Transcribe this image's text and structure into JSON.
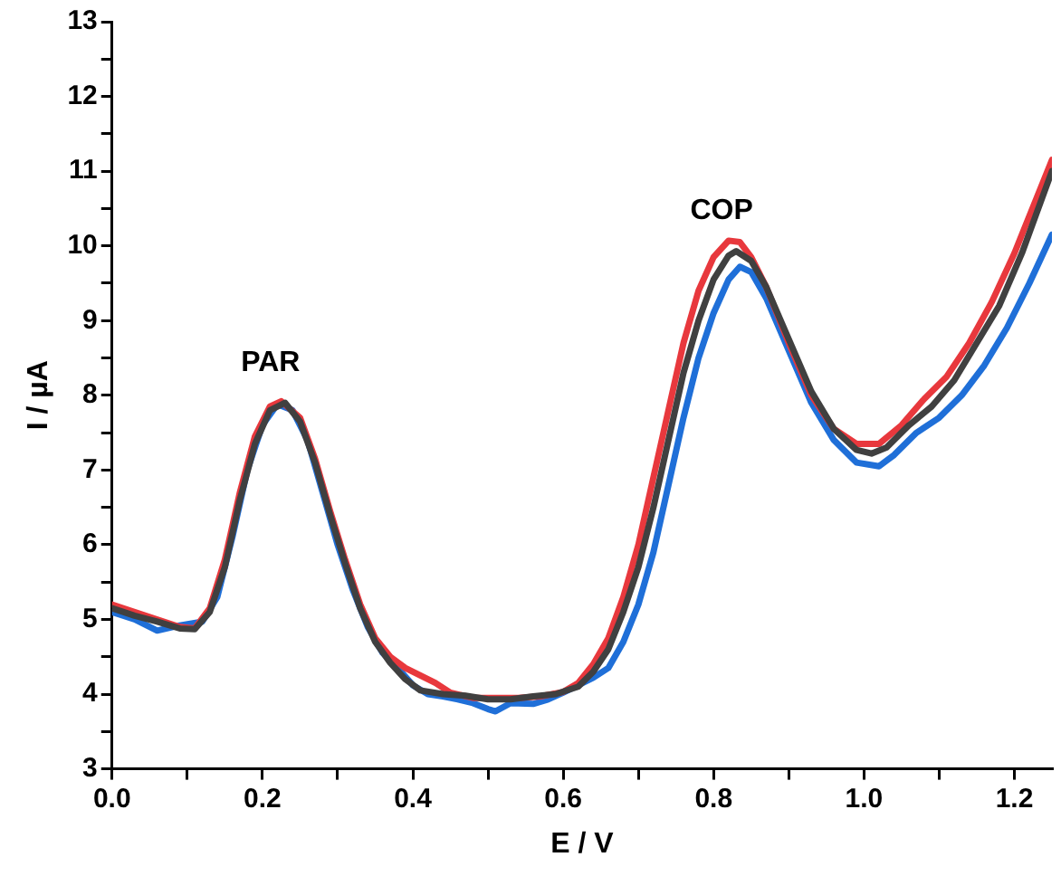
{
  "chart_data": {
    "type": "line",
    "xlabel": "E / V",
    "ylabel": "I / µA",
    "xlim": [
      0,
      1.25
    ],
    "ylim": [
      3,
      13
    ],
    "xticks": [
      {
        "value": 0,
        "label": "0.0"
      },
      {
        "value": 0.1,
        "label": null
      },
      {
        "value": 0.2,
        "label": "0.2"
      },
      {
        "value": 0.3,
        "label": null
      },
      {
        "value": 0.4,
        "label": "0.4"
      },
      {
        "value": 0.5,
        "label": null
      },
      {
        "value": 0.6,
        "label": "0.6"
      },
      {
        "value": 0.7,
        "label": null
      },
      {
        "value": 0.8,
        "label": "0.8"
      },
      {
        "value": 0.9,
        "label": null
      },
      {
        "value": 1,
        "label": "1.0"
      },
      {
        "value": 1.1,
        "label": null
      },
      {
        "value": 1.2,
        "label": "1.2"
      }
    ],
    "yticks": [
      3,
      {
        "value": 3.5,
        "label": null
      },
      4,
      {
        "value": 4.5,
        "label": null
      },
      5,
      {
        "value": 5.5,
        "label": null
      },
      6,
      {
        "value": 6.5,
        "label": null
      },
      7,
      {
        "value": 7.5,
        "label": null
      },
      8,
      {
        "value": 8.5,
        "label": null
      },
      9,
      {
        "value": 9.5,
        "label": null
      },
      10,
      {
        "value": 10.5,
        "label": null
      },
      11,
      {
        "value": 11.5,
        "label": null
      },
      12,
      {
        "value": 12.5,
        "label": null
      },
      13
    ],
    "grid": false,
    "legend": false,
    "marker": "none",
    "line_style": "solid",
    "annotations": [
      "PAR",
      "COP"
    ],
    "series": [
      {
        "color": "#404040",
        "x": [
          0,
          0.03,
          0.06,
          0.09,
          0.11,
          0.13,
          0.15,
          0.17,
          0.19,
          0.21,
          0.23,
          0.25,
          0.27,
          0.29,
          0.31,
          0.33,
          0.35,
          0.37,
          0.39,
          0.41,
          0.44,
          0.47,
          0.5,
          0.53,
          0.56,
          0.59,
          0.62,
          0.64,
          0.66,
          0.68,
          0.7,
          0.72,
          0.74,
          0.76,
          0.78,
          0.8,
          0.82,
          0.83,
          0.85,
          0.87,
          0.9,
          0.93,
          0.96,
          0.99,
          1.01,
          1.03,
          1.06,
          1.09,
          1.12,
          1.15,
          1.18,
          1.21,
          1.25
        ],
        "values": [
          5.15,
          5.05,
          4.97,
          4.88,
          4.87,
          5.1,
          5.7,
          6.6,
          7.35,
          7.8,
          7.9,
          7.65,
          7.1,
          6.4,
          5.75,
          5.15,
          4.7,
          4.42,
          4.2,
          4.05,
          4.0,
          3.98,
          3.93,
          3.93,
          3.97,
          4.0,
          4.1,
          4.3,
          4.6,
          5.1,
          5.7,
          6.5,
          7.4,
          8.3,
          9.0,
          9.55,
          9.87,
          9.93,
          9.8,
          9.45,
          8.75,
          8.05,
          7.55,
          7.27,
          7.22,
          7.3,
          7.6,
          7.85,
          8.2,
          8.7,
          9.2,
          9.9,
          11.0
        ]
      },
      {
        "color": "#e8383d",
        "x": [
          0,
          0.03,
          0.06,
          0.09,
          0.11,
          0.13,
          0.15,
          0.17,
          0.19,
          0.21,
          0.225,
          0.25,
          0.27,
          0.29,
          0.31,
          0.33,
          0.35,
          0.37,
          0.39,
          0.41,
          0.43,
          0.45,
          0.48,
          0.51,
          0.54,
          0.57,
          0.6,
          0.62,
          0.64,
          0.66,
          0.68,
          0.7,
          0.72,
          0.74,
          0.76,
          0.78,
          0.8,
          0.82,
          0.835,
          0.85,
          0.87,
          0.9,
          0.93,
          0.96,
          0.99,
          1.02,
          1.05,
          1.08,
          1.11,
          1.14,
          1.17,
          1.2,
          1.25
        ],
        "values": [
          5.2,
          5.1,
          5.0,
          4.9,
          4.88,
          5.15,
          5.8,
          6.7,
          7.45,
          7.85,
          7.92,
          7.7,
          7.15,
          6.45,
          5.8,
          5.2,
          4.75,
          4.5,
          4.35,
          4.25,
          4.15,
          4.02,
          3.95,
          3.95,
          3.95,
          3.97,
          4.03,
          4.15,
          4.4,
          4.75,
          5.3,
          6.0,
          6.9,
          7.8,
          8.7,
          9.4,
          9.85,
          10.07,
          10.05,
          9.85,
          9.45,
          8.7,
          8.0,
          7.55,
          7.35,
          7.35,
          7.6,
          7.95,
          8.25,
          8.7,
          9.25,
          9.9,
          11.15
        ]
      },
      {
        "color": "#1f6fd8",
        "x": [
          0,
          0.03,
          0.06,
          0.09,
          0.12,
          0.14,
          0.16,
          0.18,
          0.2,
          0.22,
          0.24,
          0.26,
          0.28,
          0.3,
          0.32,
          0.34,
          0.36,
          0.38,
          0.4,
          0.42,
          0.44,
          0.46,
          0.48,
          0.5,
          0.51,
          0.53,
          0.56,
          0.58,
          0.6,
          0.62,
          0.64,
          0.66,
          0.68,
          0.7,
          0.72,
          0.74,
          0.76,
          0.78,
          0.8,
          0.82,
          0.835,
          0.85,
          0.87,
          0.9,
          0.93,
          0.96,
          0.99,
          1.02,
          1.04,
          1.07,
          1.1,
          1.13,
          1.16,
          1.19,
          1.22,
          1.25
        ],
        "values": [
          5.1,
          5.0,
          4.85,
          4.92,
          4.97,
          5.3,
          6.1,
          7.0,
          7.6,
          7.88,
          7.8,
          7.4,
          6.7,
          6.0,
          5.4,
          4.9,
          4.55,
          4.35,
          4.12,
          4.0,
          3.97,
          3.93,
          3.88,
          3.8,
          3.77,
          3.88,
          3.87,
          3.93,
          4.02,
          4.12,
          4.22,
          4.35,
          4.7,
          5.2,
          5.9,
          6.8,
          7.7,
          8.5,
          9.1,
          9.55,
          9.72,
          9.65,
          9.3,
          8.6,
          7.9,
          7.4,
          7.1,
          7.05,
          7.2,
          7.5,
          7.7,
          8.0,
          8.4,
          8.9,
          9.5,
          10.15
        ]
      }
    ]
  }
}
